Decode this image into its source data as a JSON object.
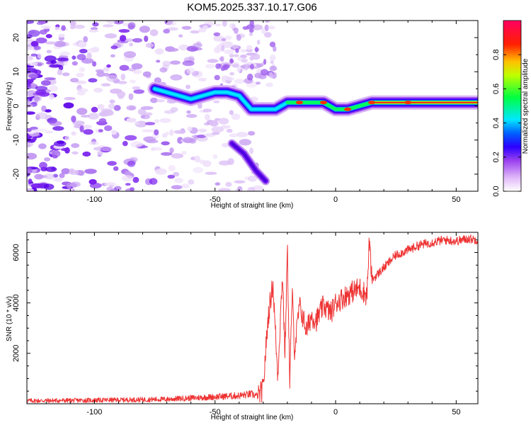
{
  "title": "KOM5.2025.337.10.17.G06",
  "chart_data": [
    {
      "type": "heatmap",
      "xlabel": "Height of straight line (km)",
      "ylabel": "Frequency (Hz)",
      "xlim": [
        -128,
        59
      ],
      "ylim": [
        -25,
        25
      ],
      "xticks": [
        -100,
        -50,
        0,
        50
      ],
      "yticks": [
        -20,
        -10,
        0,
        10,
        20
      ],
      "colorbar": {
        "label": "Normalized spectral amplitude",
        "range": [
          0,
          1
        ],
        "ticks": [
          0.0,
          0.2,
          0.4,
          0.6,
          0.8
        ],
        "tick_labels": [
          "0.0",
          "0.2",
          "0.4",
          "0.6",
          "0.8"
        ],
        "colors": [
          "#ffffff",
          "#e8c8f8",
          "#b070f0",
          "#6a00f0",
          "#0000ff",
          "#00ffff",
          "#00ff00",
          "#ffff00",
          "#ff8000",
          "#ff0000",
          "#ff0060"
        ]
      },
      "signal_track": [
        {
          "x": -75,
          "y": 5
        },
        {
          "x": -70,
          "y": 4
        },
        {
          "x": -65,
          "y": 3
        },
        {
          "x": -60,
          "y": 2
        },
        {
          "x": -55,
          "y": 3
        },
        {
          "x": -50,
          "y": 4
        },
        {
          "x": -45,
          "y": 4
        },
        {
          "x": -40,
          "y": 3
        },
        {
          "x": -35,
          "y": -1
        },
        {
          "x": -30,
          "y": -1
        },
        {
          "x": -25,
          "y": -1
        },
        {
          "x": -20,
          "y": 1
        },
        {
          "x": -15,
          "y": 1
        },
        {
          "x": -10,
          "y": 1
        },
        {
          "x": -5,
          "y": 1
        },
        {
          "x": 0,
          "y": -1
        },
        {
          "x": 5,
          "y": -1
        },
        {
          "x": 10,
          "y": 0
        },
        {
          "x": 15,
          "y": 1
        },
        {
          "x": 20,
          "y": 1
        },
        {
          "x": 30,
          "y": 1
        },
        {
          "x": 40,
          "y": 1
        },
        {
          "x": 50,
          "y": 1
        },
        {
          "x": 59,
          "y": 1
        }
      ],
      "branch_track": [
        {
          "x": -43,
          "y": -11
        },
        {
          "x": -38,
          "y": -14
        },
        {
          "x": -33,
          "y": -19
        },
        {
          "x": -29,
          "y": -22
        }
      ]
    },
    {
      "type": "line",
      "xlabel": "Height of straight line (km)",
      "ylabel": "SNR (10 * v/v)",
      "xlim": [
        -128,
        59
      ],
      "ylim": [
        0,
        6800
      ],
      "xticks": [
        -100,
        -50,
        0,
        50
      ],
      "yticks": [
        2000,
        4000,
        6000
      ],
      "line_color": "#ee3333",
      "series": [
        {
          "name": "SNR",
          "x": [
            -128,
            -110,
            -90,
            -70,
            -55,
            -45,
            -40,
            -35,
            -32,
            -30,
            -29,
            -28,
            -26,
            -24,
            -22,
            -21,
            -20,
            -19,
            -18,
            -17,
            -15,
            -12,
            -10,
            -8,
            -5,
            -2,
            0,
            3,
            6,
            10,
            13,
            14,
            15,
            20,
            25,
            30,
            35,
            40,
            45,
            50,
            55,
            59
          ],
          "y": [
            120,
            130,
            150,
            180,
            250,
            300,
            320,
            380,
            300,
            600,
            2100,
            3400,
            4800,
            1100,
            5200,
            1900,
            6200,
            800,
            4400,
            2100,
            3900,
            2900,
            3500,
            3300,
            3900,
            3600,
            4000,
            4200,
            4400,
            4600,
            4300,
            6500,
            4900,
            5400,
            5900,
            6100,
            6300,
            6400,
            6500,
            6450,
            6550,
            6500
          ]
        }
      ]
    }
  ]
}
